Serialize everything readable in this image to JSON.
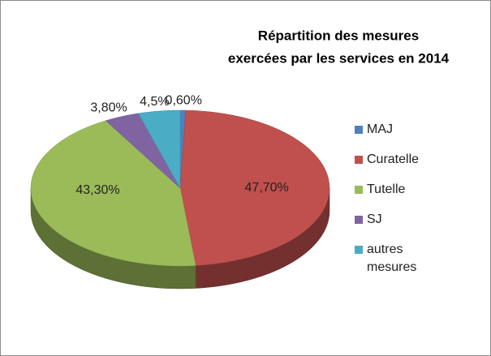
{
  "chart_data": {
    "type": "pie",
    "title": [
      "Répartition des mesures",
      "exercées par les services en 2014"
    ],
    "categories": [
      "MAJ",
      "Curatelle",
      "Tutelle",
      "SJ",
      "autres mesures"
    ],
    "values": [
      0.6,
      47.7,
      43.3,
      3.8,
      4.5
    ],
    "value_labels": [
      "0,60%",
      "47,70%",
      "43,30%",
      "3,80%",
      "4,5%"
    ],
    "colors": [
      "#4f81bd",
      "#c0504d",
      "#9bbb59",
      "#8064a2",
      "#4bacc6"
    ],
    "legend": "right"
  }
}
